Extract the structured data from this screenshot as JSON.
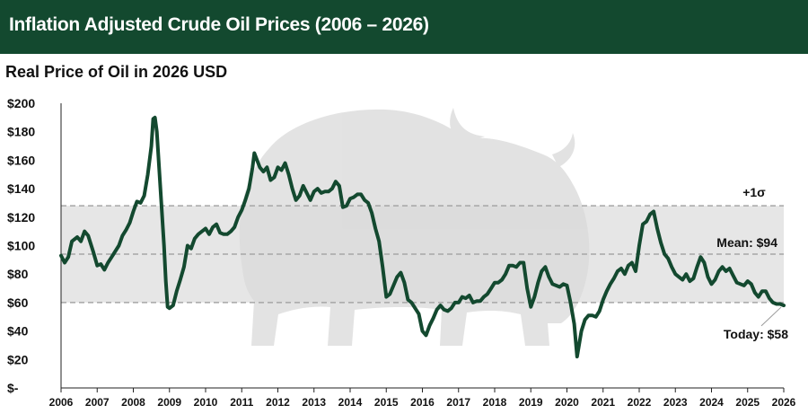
{
  "header": {
    "title": "Inflation Adjusted Crude Oil Prices (2006 – 2026)",
    "subtitle": "Real Price of Oil in 2026 USD"
  },
  "colors": {
    "banner": "#13492f",
    "line": "#13492f",
    "band": "#e6e6e6",
    "watermark": "#d9d9d9"
  },
  "chart_data": {
    "type": "line",
    "title": "Real Price of Oil in 2026 USD",
    "ylim": [
      0,
      200
    ],
    "xlim": [
      2006,
      2026
    ],
    "y_ticks": [
      {
        "value": 200,
        "label": "$200"
      },
      {
        "value": 180,
        "label": "$180"
      },
      {
        "value": 160,
        "label": "$160"
      },
      {
        "value": 140,
        "label": "$140"
      },
      {
        "value": 120,
        "label": "$120"
      },
      {
        "value": 100,
        "label": "$100"
      },
      {
        "value": 80,
        "label": "$80"
      },
      {
        "value": 60,
        "label": "$60"
      },
      {
        "value": 40,
        "label": "$40"
      },
      {
        "value": 20,
        "label": "$20"
      },
      {
        "value": 0,
        "label": "$-"
      }
    ],
    "x_ticks": [
      "2006",
      "2007",
      "2008",
      "2009",
      "2010",
      "2011",
      "2012",
      "2013",
      "2014",
      "2015",
      "2016",
      "2017",
      "2018",
      "2019",
      "2020",
      "2021",
      "2022",
      "2023",
      "2024",
      "2025",
      "2026"
    ],
    "band": {
      "low": 60,
      "high": 128
    },
    "reference_lines": [
      {
        "value": 128,
        "label": "+1σ"
      },
      {
        "value": 94,
        "label": "Mean: $94"
      },
      {
        "value": 60,
        "label": "Today: $58"
      }
    ],
    "series": [
      {
        "points": [
          [
            2006.0,
            93
          ],
          [
            2006.1,
            88
          ],
          [
            2006.2,
            92
          ],
          [
            2006.3,
            103
          ],
          [
            2006.45,
            106
          ],
          [
            2006.55,
            103
          ],
          [
            2006.65,
            110
          ],
          [
            2006.75,
            107
          ],
          [
            2006.9,
            95
          ],
          [
            2007.0,
            86
          ],
          [
            2007.1,
            87
          ],
          [
            2007.2,
            83
          ],
          [
            2007.3,
            88
          ],
          [
            2007.4,
            92
          ],
          [
            2007.5,
            96
          ],
          [
            2007.6,
            100
          ],
          [
            2007.7,
            107
          ],
          [
            2007.8,
            111
          ],
          [
            2007.9,
            116
          ],
          [
            2008.0,
            124
          ],
          [
            2008.1,
            131
          ],
          [
            2008.2,
            130
          ],
          [
            2008.3,
            135
          ],
          [
            2008.4,
            150
          ],
          [
            2008.5,
            170
          ],
          [
            2008.55,
            189
          ],
          [
            2008.6,
            190
          ],
          [
            2008.65,
            180
          ],
          [
            2008.75,
            140
          ],
          [
            2008.85,
            100
          ],
          [
            2008.9,
            75
          ],
          [
            2008.95,
            57
          ],
          [
            2009.0,
            56
          ],
          [
            2009.1,
            58
          ],
          [
            2009.2,
            68
          ],
          [
            2009.3,
            76
          ],
          [
            2009.4,
            85
          ],
          [
            2009.5,
            100
          ],
          [
            2009.6,
            98
          ],
          [
            2009.7,
            105
          ],
          [
            2009.8,
            108
          ],
          [
            2009.9,
            110
          ],
          [
            2010.0,
            112
          ],
          [
            2010.1,
            108
          ],
          [
            2010.2,
            113
          ],
          [
            2010.3,
            115
          ],
          [
            2010.4,
            109
          ],
          [
            2010.5,
            108
          ],
          [
            2010.6,
            108
          ],
          [
            2010.7,
            110
          ],
          [
            2010.8,
            113
          ],
          [
            2010.9,
            120
          ],
          [
            2011.0,
            125
          ],
          [
            2011.1,
            132
          ],
          [
            2011.2,
            140
          ],
          [
            2011.3,
            155
          ],
          [
            2011.35,
            165
          ],
          [
            2011.5,
            155
          ],
          [
            2011.6,
            152
          ],
          [
            2011.7,
            155
          ],
          [
            2011.8,
            146
          ],
          [
            2011.9,
            148
          ],
          [
            2012.0,
            155
          ],
          [
            2012.1,
            153
          ],
          [
            2012.2,
            158
          ],
          [
            2012.3,
            150
          ],
          [
            2012.4,
            140
          ],
          [
            2012.5,
            132
          ],
          [
            2012.6,
            135
          ],
          [
            2012.7,
            142
          ],
          [
            2012.8,
            137
          ],
          [
            2012.9,
            132
          ],
          [
            2013.0,
            138
          ],
          [
            2013.1,
            140
          ],
          [
            2013.2,
            137
          ],
          [
            2013.3,
            138
          ],
          [
            2013.4,
            138
          ],
          [
            2013.5,
            140
          ],
          [
            2013.6,
            145
          ],
          [
            2013.7,
            142
          ],
          [
            2013.8,
            127
          ],
          [
            2013.9,
            128
          ],
          [
            2014.0,
            133
          ],
          [
            2014.1,
            134
          ],
          [
            2014.2,
            136
          ],
          [
            2014.3,
            136
          ],
          [
            2014.4,
            132
          ],
          [
            2014.5,
            130
          ],
          [
            2014.6,
            123
          ],
          [
            2014.7,
            112
          ],
          [
            2014.8,
            103
          ],
          [
            2014.9,
            85
          ],
          [
            2015.0,
            64
          ],
          [
            2015.1,
            66
          ],
          [
            2015.2,
            72
          ],
          [
            2015.3,
            78
          ],
          [
            2015.4,
            81
          ],
          [
            2015.5,
            74
          ],
          [
            2015.6,
            62
          ],
          [
            2015.7,
            60
          ],
          [
            2015.8,
            56
          ],
          [
            2015.9,
            52
          ],
          [
            2016.0,
            40
          ],
          [
            2016.1,
            37
          ],
          [
            2016.2,
            44
          ],
          [
            2016.3,
            49
          ],
          [
            2016.4,
            55
          ],
          [
            2016.5,
            58
          ],
          [
            2016.6,
            55
          ],
          [
            2016.7,
            54
          ],
          [
            2016.8,
            56
          ],
          [
            2016.9,
            60
          ],
          [
            2017.0,
            60
          ],
          [
            2017.1,
            64
          ],
          [
            2017.2,
            63
          ],
          [
            2017.3,
            65
          ],
          [
            2017.4,
            60
          ],
          [
            2017.5,
            61
          ],
          [
            2017.6,
            61
          ],
          [
            2017.7,
            64
          ],
          [
            2017.8,
            66
          ],
          [
            2017.9,
            70
          ],
          [
            2018.0,
            74
          ],
          [
            2018.1,
            74
          ],
          [
            2018.2,
            76
          ],
          [
            2018.3,
            80
          ],
          [
            2018.4,
            86
          ],
          [
            2018.5,
            86
          ],
          [
            2018.6,
            85
          ],
          [
            2018.7,
            88
          ],
          [
            2018.8,
            88
          ],
          [
            2018.9,
            70
          ],
          [
            2019.0,
            57
          ],
          [
            2019.1,
            64
          ],
          [
            2019.2,
            74
          ],
          [
            2019.3,
            82
          ],
          [
            2019.4,
            85
          ],
          [
            2019.5,
            78
          ],
          [
            2019.6,
            73
          ],
          [
            2019.7,
            72
          ],
          [
            2019.8,
            71
          ],
          [
            2019.9,
            73
          ],
          [
            2020.0,
            72
          ],
          [
            2020.1,
            60
          ],
          [
            2020.2,
            45
          ],
          [
            2020.28,
            22
          ],
          [
            2020.4,
            40
          ],
          [
            2020.5,
            48
          ],
          [
            2020.6,
            51
          ],
          [
            2020.7,
            51
          ],
          [
            2020.8,
            50
          ],
          [
            2020.9,
            54
          ],
          [
            2021.0,
            62
          ],
          [
            2021.1,
            68
          ],
          [
            2021.2,
            73
          ],
          [
            2021.3,
            77
          ],
          [
            2021.4,
            82
          ],
          [
            2021.5,
            84
          ],
          [
            2021.6,
            80
          ],
          [
            2021.7,
            86
          ],
          [
            2021.8,
            88
          ],
          [
            2021.9,
            82
          ],
          [
            2022.0,
            100
          ],
          [
            2022.1,
            115
          ],
          [
            2022.2,
            117
          ],
          [
            2022.3,
            122
          ],
          [
            2022.4,
            124
          ],
          [
            2022.5,
            112
          ],
          [
            2022.6,
            102
          ],
          [
            2022.7,
            94
          ],
          [
            2022.8,
            91
          ],
          [
            2022.9,
            85
          ],
          [
            2023.0,
            80
          ],
          [
            2023.1,
            78
          ],
          [
            2023.2,
            76
          ],
          [
            2023.3,
            80
          ],
          [
            2023.4,
            75
          ],
          [
            2023.5,
            77
          ],
          [
            2023.6,
            85
          ],
          [
            2023.7,
            92
          ],
          [
            2023.8,
            88
          ],
          [
            2023.9,
            78
          ],
          [
            2024.0,
            73
          ],
          [
            2024.1,
            76
          ],
          [
            2024.2,
            82
          ],
          [
            2024.3,
            85
          ],
          [
            2024.4,
            82
          ],
          [
            2024.5,
            84
          ],
          [
            2024.6,
            79
          ],
          [
            2024.7,
            74
          ],
          [
            2024.8,
            73
          ],
          [
            2024.9,
            72
          ],
          [
            2025.0,
            75
          ],
          [
            2025.1,
            73
          ],
          [
            2025.2,
            67
          ],
          [
            2025.3,
            64
          ],
          [
            2025.4,
            68
          ],
          [
            2025.5,
            68
          ],
          [
            2025.6,
            63
          ],
          [
            2025.7,
            60
          ],
          [
            2025.8,
            59
          ],
          [
            2025.9,
            59
          ],
          [
            2026.0,
            58
          ]
        ]
      }
    ]
  }
}
